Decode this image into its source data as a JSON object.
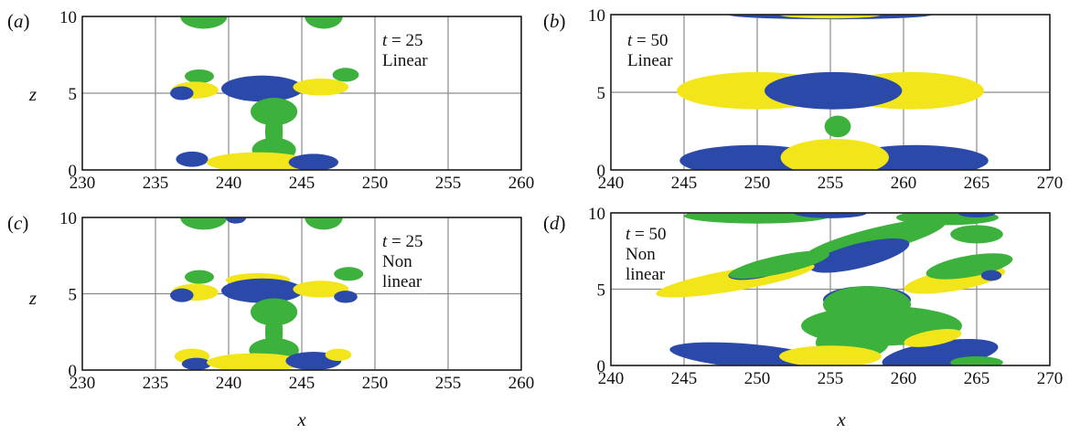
{
  "figure": {
    "xlabel": "x",
    "ylabel": "z",
    "colors": {
      "yellow": "#f2e61a",
      "blue": "#2b49a8",
      "green": "#3cb13c",
      "grid": "#8a8a8a",
      "frame": "#222222"
    }
  },
  "chart_data": [
    {
      "type": "contour",
      "panel_label": "(a)",
      "annotation_time": "t = 25",
      "annotation_lines": [
        "Linear"
      ],
      "xlim": [
        230,
        260
      ],
      "ylim": [
        0,
        10
      ],
      "xticks": [
        230,
        235,
        240,
        245,
        250,
        255,
        260
      ],
      "yticks": [
        0,
        5,
        10
      ],
      "show_ylabel": true,
      "show_xticklabels": true,
      "blobs": [
        {
          "c": "green",
          "x": 238.3,
          "y": 10.0,
          "rx": 1.6,
          "ry": 0.8
        },
        {
          "c": "green",
          "x": 246.5,
          "y": 10.0,
          "rx": 1.3,
          "ry": 0.8
        },
        {
          "c": "green",
          "x": 238.0,
          "y": 6.1,
          "rx": 1.0,
          "ry": 0.45
        },
        {
          "c": "green",
          "x": 248.0,
          "y": 6.2,
          "rx": 0.9,
          "ry": 0.45
        },
        {
          "c": "yellow",
          "x": 237.7,
          "y": 5.2,
          "rx": 1.6,
          "ry": 0.55
        },
        {
          "c": "blue",
          "x": 242.3,
          "y": 5.3,
          "rx": 2.8,
          "ry": 0.85
        },
        {
          "c": "yellow",
          "x": 246.3,
          "y": 5.4,
          "rx": 1.9,
          "ry": 0.55
        },
        {
          "c": "blue",
          "x": 236.8,
          "y": 5.0,
          "rx": 0.8,
          "ry": 0.45
        },
        {
          "c": "green",
          "x": 243.1,
          "y": 3.8,
          "rx": 1.6,
          "ry": 0.9
        },
        {
          "c": "green",
          "x": 243.1,
          "y": 1.3,
          "rx": 1.5,
          "ry": 0.8
        },
        {
          "c": "green",
          "x": 243.1,
          "y": 2.5,
          "rx": 0.6,
          "ry": 1.6
        },
        {
          "c": "blue",
          "x": 237.5,
          "y": 0.7,
          "rx": 1.1,
          "ry": 0.5
        },
        {
          "c": "yellow",
          "x": 242.0,
          "y": 0.5,
          "rx": 3.5,
          "ry": 0.65
        },
        {
          "c": "blue",
          "x": 245.8,
          "y": 0.5,
          "rx": 1.7,
          "ry": 0.55
        }
      ]
    },
    {
      "type": "contour",
      "panel_label": "(b)",
      "annotation_time": "t = 50",
      "annotation_lines": [
        "Linear"
      ],
      "xlim": [
        240,
        270
      ],
      "ylim": [
        0,
        10
      ],
      "xticks": [
        240,
        245,
        250,
        255,
        260,
        265,
        270
      ],
      "yticks": [
        0,
        5,
        10
      ],
      "show_ylabel": false,
      "show_xticklabels": true,
      "blobs": [
        {
          "c": "blue",
          "x": 255.0,
          "y": 10.0,
          "rx": 7.0,
          "ry": 0.3
        },
        {
          "c": "yellow",
          "x": 255.0,
          "y": 10.0,
          "rx": 3.5,
          "ry": 0.25
        },
        {
          "c": "yellow",
          "x": 250.0,
          "y": 5.1,
          "rx": 5.5,
          "ry": 1.2
        },
        {
          "c": "yellow",
          "x": 260.5,
          "y": 5.1,
          "rx": 5.0,
          "ry": 1.2
        },
        {
          "c": "blue",
          "x": 255.2,
          "y": 5.1,
          "rx": 4.7,
          "ry": 1.2
        },
        {
          "c": "green",
          "x": 255.5,
          "y": 2.8,
          "rx": 0.9,
          "ry": 0.7
        },
        {
          "c": "blue",
          "x": 249.7,
          "y": 0.6,
          "rx": 5.0,
          "ry": 1.0
        },
        {
          "c": "blue",
          "x": 260.8,
          "y": 0.6,
          "rx": 5.0,
          "ry": 1.0
        },
        {
          "c": "yellow",
          "x": 255.3,
          "y": 0.8,
          "rx": 3.7,
          "ry": 1.2
        }
      ]
    },
    {
      "type": "contour",
      "panel_label": "(c)",
      "annotation_time": "t = 25",
      "annotation_lines": [
        "Non",
        "linear"
      ],
      "xlim": [
        230,
        260
      ],
      "ylim": [
        0,
        10
      ],
      "xticks": [
        230,
        235,
        240,
        245,
        250,
        255,
        260
      ],
      "yticks": [
        0,
        5,
        10
      ],
      "show_ylabel": true,
      "show_xticklabels": true,
      "blobs": [
        {
          "c": "green",
          "x": 238.3,
          "y": 10.0,
          "rx": 1.6,
          "ry": 0.8
        },
        {
          "c": "blue",
          "x": 240.5,
          "y": 10.0,
          "rx": 0.7,
          "ry": 0.4
        },
        {
          "c": "green",
          "x": 246.5,
          "y": 10.0,
          "rx": 1.3,
          "ry": 0.8
        },
        {
          "c": "green",
          "x": 238.0,
          "y": 6.1,
          "rx": 1.0,
          "ry": 0.45
        },
        {
          "c": "green",
          "x": 248.2,
          "y": 6.3,
          "rx": 1.0,
          "ry": 0.45
        },
        {
          "c": "yellow",
          "x": 237.7,
          "y": 5.1,
          "rx": 1.6,
          "ry": 0.55
        },
        {
          "c": "yellow",
          "x": 242.0,
          "y": 5.9,
          "rx": 2.2,
          "ry": 0.45
        },
        {
          "c": "blue",
          "x": 242.3,
          "y": 5.2,
          "rx": 2.8,
          "ry": 0.8
        },
        {
          "c": "yellow",
          "x": 246.3,
          "y": 5.3,
          "rx": 1.9,
          "ry": 0.55
        },
        {
          "c": "blue",
          "x": 236.8,
          "y": 4.9,
          "rx": 0.8,
          "ry": 0.45
        },
        {
          "c": "blue",
          "x": 248.0,
          "y": 4.8,
          "rx": 0.8,
          "ry": 0.4
        },
        {
          "c": "green",
          "x": 243.1,
          "y": 3.8,
          "rx": 1.6,
          "ry": 0.9
        },
        {
          "c": "green",
          "x": 243.1,
          "y": 1.3,
          "rx": 1.7,
          "ry": 0.8
        },
        {
          "c": "green",
          "x": 243.1,
          "y": 2.5,
          "rx": 0.6,
          "ry": 1.6
        },
        {
          "c": "yellow",
          "x": 237.5,
          "y": 0.9,
          "rx": 1.2,
          "ry": 0.5
        },
        {
          "c": "blue",
          "x": 237.8,
          "y": 0.4,
          "rx": 1.0,
          "ry": 0.4
        },
        {
          "c": "yellow",
          "x": 241.8,
          "y": 0.5,
          "rx": 3.3,
          "ry": 0.6
        },
        {
          "c": "blue",
          "x": 245.8,
          "y": 0.6,
          "rx": 1.9,
          "ry": 0.6
        },
        {
          "c": "yellow",
          "x": 247.5,
          "y": 1.0,
          "rx": 0.9,
          "ry": 0.4
        }
      ]
    },
    {
      "type": "contour",
      "panel_label": "(d)",
      "annotation_time": "t = 50",
      "annotation_lines": [
        "Non",
        "linear"
      ],
      "xlim": [
        240,
        270
      ],
      "ylim": [
        0,
        10
      ],
      "xticks": [
        240,
        245,
        250,
        255,
        260,
        265,
        270
      ],
      "yticks": [
        0,
        5,
        10
      ],
      "show_ylabel": false,
      "show_xticklabels": true,
      "blobs": [
        {
          "c": "green",
          "x": 250.0,
          "y": 9.8,
          "rx": 5.0,
          "ry": 0.5
        },
        {
          "c": "blue",
          "x": 255.0,
          "y": 10.0,
          "rx": 2.5,
          "ry": 0.35
        },
        {
          "c": "green",
          "x": 263.0,
          "y": 9.7,
          "rx": 3.5,
          "ry": 0.5
        },
        {
          "c": "blue",
          "x": 265.0,
          "y": 10.0,
          "rx": 1.3,
          "ry": 0.3
        },
        {
          "c": "green",
          "x": 265.0,
          "y": 8.6,
          "rx": 1.8,
          "ry": 0.6
        },
        {
          "c": "green",
          "x": 258.0,
          "y": 8.2,
          "rx": 5.0,
          "ry": 0.8,
          "rot": -14
        },
        {
          "c": "blue",
          "x": 257.0,
          "y": 7.2,
          "rx": 3.5,
          "ry": 0.8,
          "rot": -14
        },
        {
          "c": "yellow",
          "x": 248.5,
          "y": 5.6,
          "rx": 5.5,
          "ry": 0.7,
          "rot": -10
        },
        {
          "c": "blue",
          "x": 250.0,
          "y": 6.2,
          "rx": 2.0,
          "ry": 0.5,
          "rot": -10
        },
        {
          "c": "green",
          "x": 251.5,
          "y": 6.6,
          "rx": 3.5,
          "ry": 0.6,
          "rot": -12
        },
        {
          "c": "yellow",
          "x": 263.5,
          "y": 5.6,
          "rx": 3.5,
          "ry": 0.7,
          "rot": -10
        },
        {
          "c": "green",
          "x": 264.5,
          "y": 6.5,
          "rx": 3.0,
          "ry": 0.7,
          "rot": -10
        },
        {
          "c": "blue",
          "x": 266.0,
          "y": 5.9,
          "rx": 0.7,
          "ry": 0.35
        },
        {
          "c": "blue",
          "x": 257.5,
          "y": 4.3,
          "rx": 3.0,
          "ry": 0.9
        },
        {
          "c": "green",
          "x": 258.5,
          "y": 2.6,
          "rx": 5.5,
          "ry": 1.3
        },
        {
          "c": "green",
          "x": 257.5,
          "y": 4.0,
          "rx": 3.0,
          "ry": 1.2
        },
        {
          "c": "green",
          "x": 256.5,
          "y": 1.5,
          "rx": 2.5,
          "ry": 1.1
        },
        {
          "c": "blue",
          "x": 249.5,
          "y": 0.6,
          "rx": 5.5,
          "ry": 0.8,
          "rot": 5
        },
        {
          "c": "yellow",
          "x": 255.0,
          "y": 0.6,
          "rx": 3.5,
          "ry": 0.7
        },
        {
          "c": "blue",
          "x": 262.5,
          "y": 0.7,
          "rx": 4.0,
          "ry": 0.9,
          "rot": -8
        },
        {
          "c": "yellow",
          "x": 262.0,
          "y": 1.8,
          "rx": 2.0,
          "ry": 0.5,
          "rot": -10
        },
        {
          "c": "green",
          "x": 265.0,
          "y": 0.2,
          "rx": 1.8,
          "ry": 0.4
        }
      ]
    }
  ]
}
